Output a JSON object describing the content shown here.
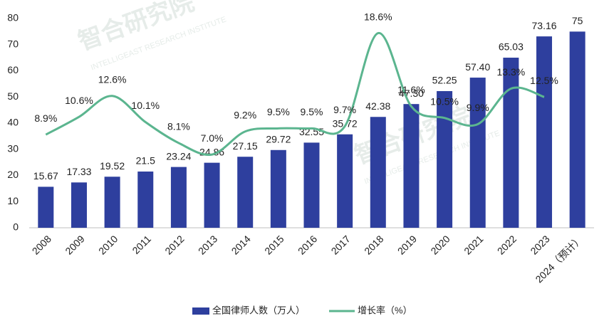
{
  "chart_data": {
    "type": "bar",
    "watermark": "智合研究院",
    "watermark_subtitle": "INTELLIGEAST RESEARCH INSTITUTE",
    "categories": [
      "2008",
      "2009",
      "2010",
      "2011",
      "2012",
      "2013",
      "2014",
      "2015",
      "2016",
      "2017",
      "2018",
      "2019",
      "2020",
      "2021",
      "2022",
      "2023",
      "2024（预计）"
    ],
    "series": [
      {
        "name": "全国律师人数（万人）",
        "type": "bar",
        "color": "#2e3f9e",
        "values": [
          15.67,
          17.33,
          19.52,
          21.5,
          23.24,
          24.86,
          27.15,
          29.72,
          32.55,
          35.72,
          42.38,
          47.3,
          52.25,
          57.4,
          65.03,
          73.16,
          75
        ],
        "value_labels": [
          "15.67",
          "17.33",
          "19.52",
          "21.5",
          "23.24",
          "24.86",
          "27.15",
          "29.72",
          "32.55",
          "35.72",
          "42.38",
          "47.30",
          "52.25",
          "57.40",
          "65.03",
          "73.16",
          "75"
        ]
      },
      {
        "name": "增长率（%）",
        "type": "line",
        "axis": "y2",
        "color": "#5bb58f",
        "values": [
          8.9,
          10.6,
          12.6,
          10.1,
          8.1,
          7.0,
          9.2,
          9.5,
          9.5,
          9.7,
          18.6,
          11.6,
          10.5,
          9.9,
          13.3,
          12.5,
          null
        ],
        "value_labels": [
          "8.9%",
          "10.6%",
          "12.6%",
          "10.1%",
          "8.1%",
          "7.0%",
          "9.2%",
          "9.5%",
          "9.5%",
          "9.7%",
          "18.6%",
          "11.6%",
          "10.5%",
          "9.9%",
          "13.3%",
          "12.5%",
          null
        ]
      }
    ],
    "ylim": [
      0,
      80
    ],
    "yticks": [
      0,
      10,
      20,
      30,
      40,
      50,
      60,
      70,
      80
    ],
    "y2lim": [
      0,
      20
    ],
    "legend": "bottom"
  }
}
